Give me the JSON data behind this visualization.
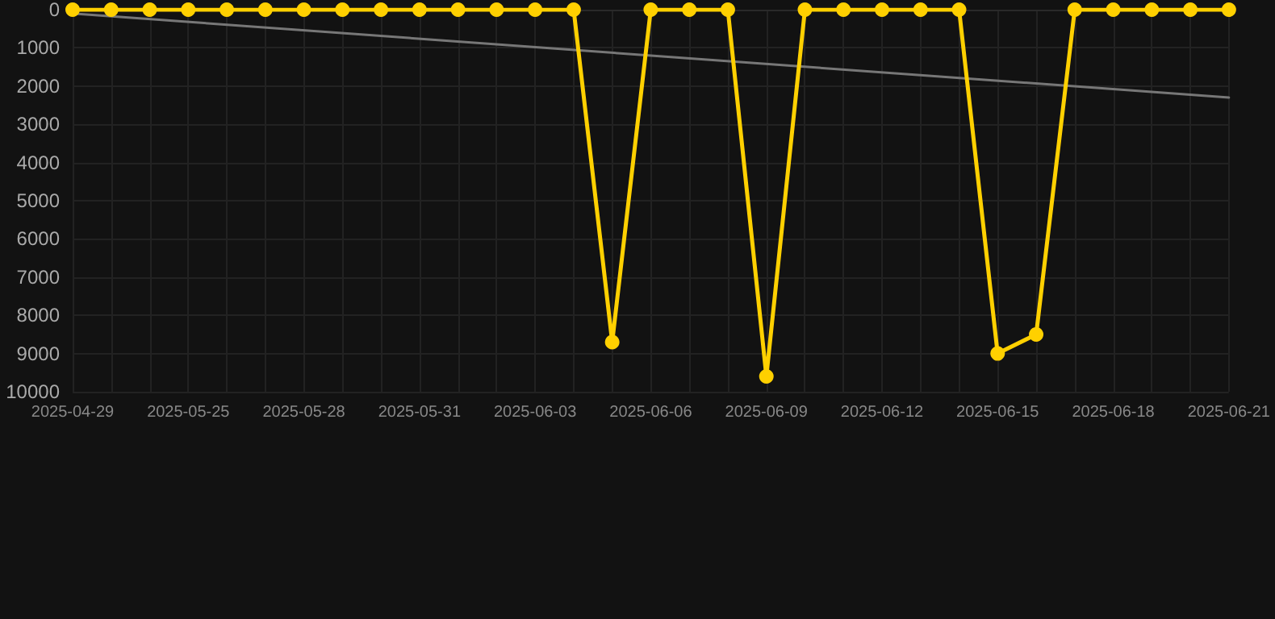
{
  "chart_data": {
    "type": "line",
    "categories": [
      "2025-04-29",
      null,
      null,
      "2025-05-25",
      null,
      null,
      "2025-05-28",
      null,
      null,
      "2025-05-31",
      null,
      null,
      "2025-06-03",
      null,
      null,
      "2025-06-06",
      null,
      null,
      "2025-06-09",
      null,
      null,
      "2025-06-12",
      null,
      null,
      "2025-06-15",
      null,
      null,
      "2025-06-18",
      null,
      null,
      "2025-06-21"
    ],
    "series": [
      {
        "color": "#ffd000",
        "values": [
          0,
          0,
          0,
          0,
          0,
          0,
          0,
          0,
          0,
          0,
          0,
          0,
          0,
          0,
          8700,
          0,
          0,
          0,
          9600,
          0,
          0,
          0,
          0,
          0,
          9000,
          8500,
          0,
          0,
          0,
          0,
          0
        ]
      },
      {
        "type": "line",
        "color": "#777777",
        "values": [
          100,
          null,
          null,
          null,
          null,
          null,
          null,
          null,
          null,
          null,
          null,
          null,
          null,
          null,
          null,
          null,
          null,
          null,
          null,
          null,
          null,
          null,
          null,
          null,
          null,
          null,
          null,
          null,
          null,
          null,
          2300
        ],
        "marker": "none"
      }
    ],
    "ylim": [
      10000,
      0
    ],
    "yticks": [
      0,
      1000,
      2000,
      3000,
      4000,
      5000,
      6000,
      7000,
      8000,
      9000,
      10000
    ],
    "grid": true,
    "marker": "circle",
    "line_style": "solid"
  }
}
